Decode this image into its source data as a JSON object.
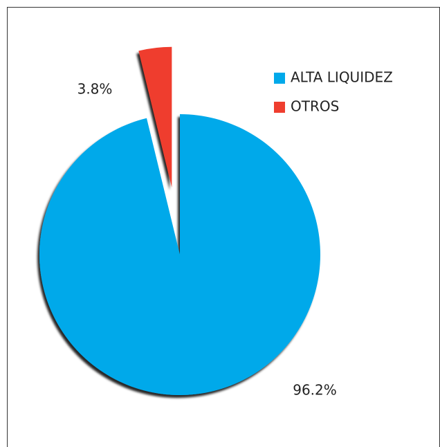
{
  "chart_data": {
    "type": "pie",
    "categories": [
      "ALTA LIQUIDEZ",
      "OTROS"
    ],
    "values": [
      96.2,
      3.8
    ],
    "value_labels": [
      "96.2%",
      "3.8%"
    ],
    "colors": [
      "#00a9ea",
      "#ef3e2f"
    ],
    "legend": "top-right"
  }
}
